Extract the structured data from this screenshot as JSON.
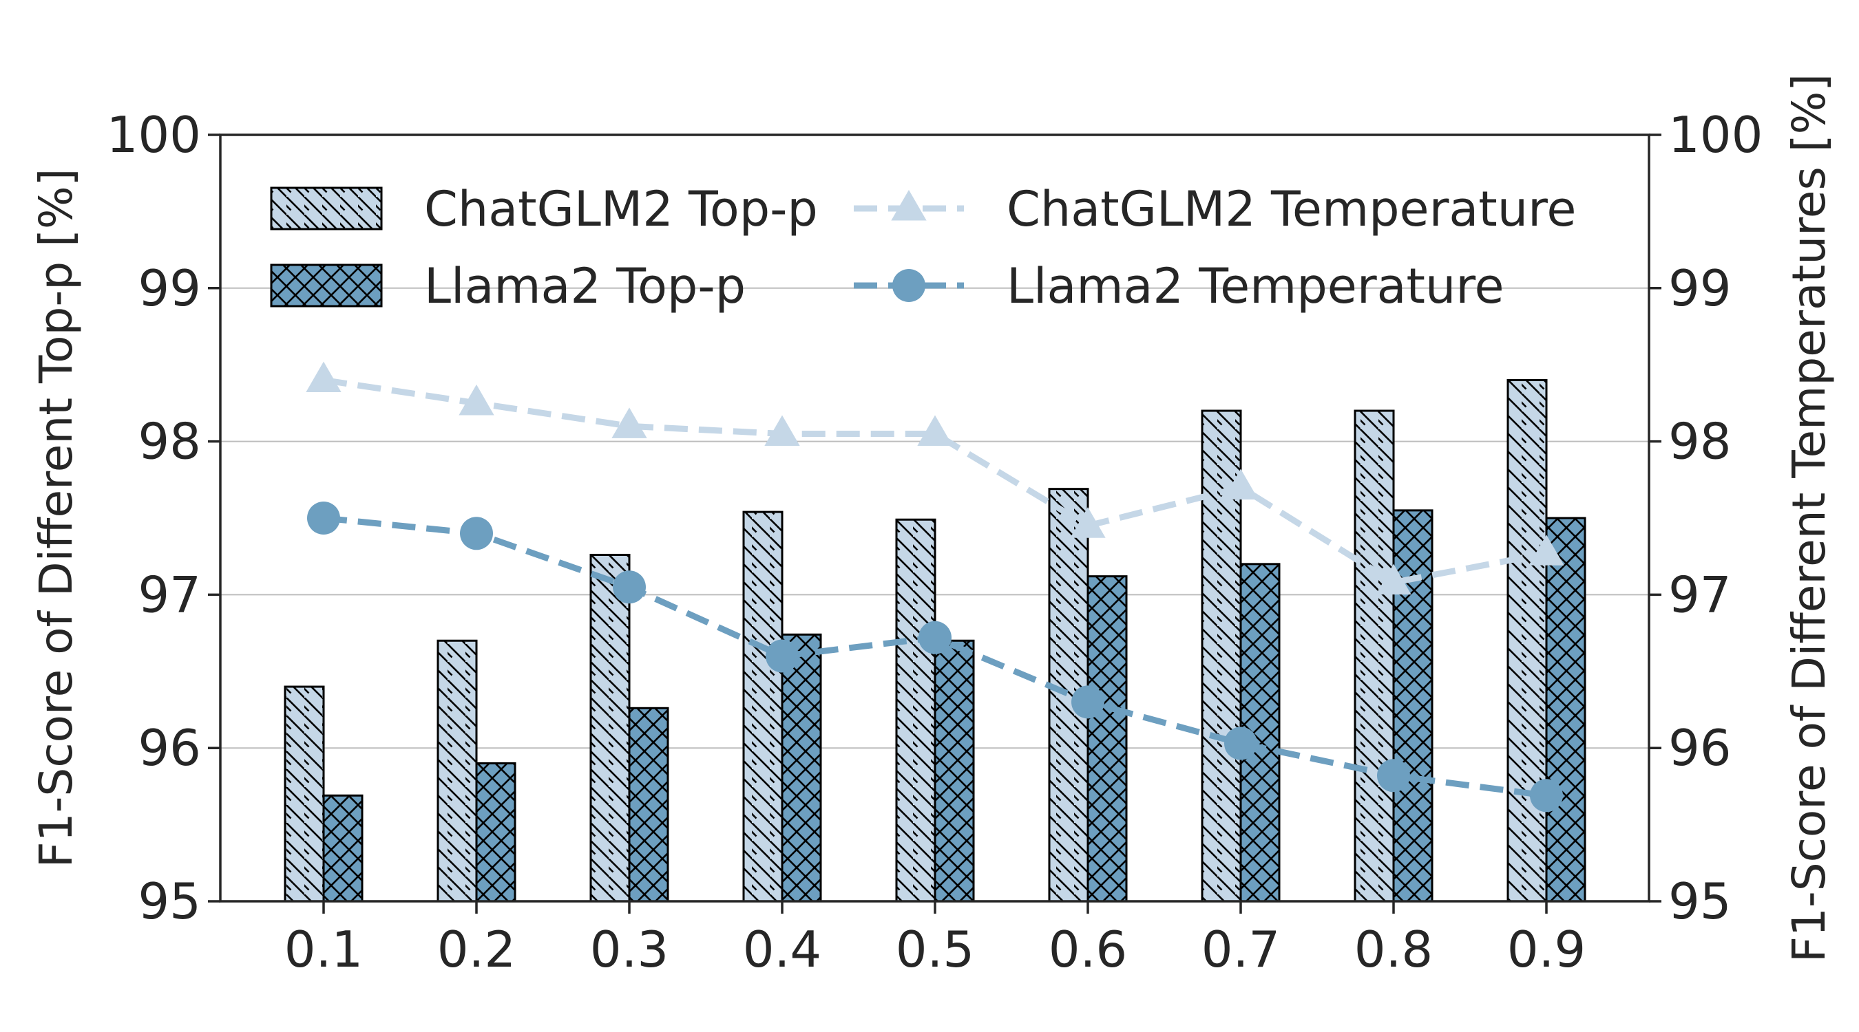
{
  "chart_data": {
    "type": "bar",
    "categories": [
      "0.1",
      "0.2",
      "0.3",
      "0.4",
      "0.5",
      "0.6",
      "0.7",
      "0.8",
      "0.9"
    ],
    "ylabel_left": "F1-Score of Different Top-p [%]",
    "ylabel_right": "F1-Score of Different Temperatures [%]",
    "ylim": [
      95,
      100
    ],
    "yticks": [
      "95",
      "96",
      "97",
      "98",
      "99",
      "100"
    ],
    "grid": "horizontal",
    "legend_position": "top",
    "bar_series": [
      {
        "name": "ChatGLM2 Top-p",
        "color": "#c5d7e7",
        "hatch": "diagonal",
        "values": [
          96.4,
          96.7,
          97.26,
          97.54,
          97.49,
          97.69,
          98.2,
          98.2,
          98.4
        ]
      },
      {
        "name": "Llama2 Top-p",
        "color": "#6d9fc0",
        "hatch": "crosshatch",
        "values": [
          95.69,
          95.9,
          96.26,
          96.74,
          96.7,
          97.12,
          97.2,
          97.55,
          97.5
        ]
      }
    ],
    "line_series": [
      {
        "name": "ChatGLM2 Temperature",
        "color": "#c5d7e7",
        "marker": "triangle",
        "linestyle": "dashed",
        "values": [
          98.4,
          98.25,
          98.1,
          98.05,
          98.05,
          97.45,
          97.7,
          97.08,
          97.27
        ]
      },
      {
        "name": "Llama2 Temperature",
        "color": "#6d9fc0",
        "marker": "circle",
        "linestyle": "dashed",
        "values": [
          97.5,
          97.4,
          97.05,
          96.6,
          96.72,
          96.3,
          96.03,
          95.82,
          95.69
        ]
      }
    ]
  }
}
